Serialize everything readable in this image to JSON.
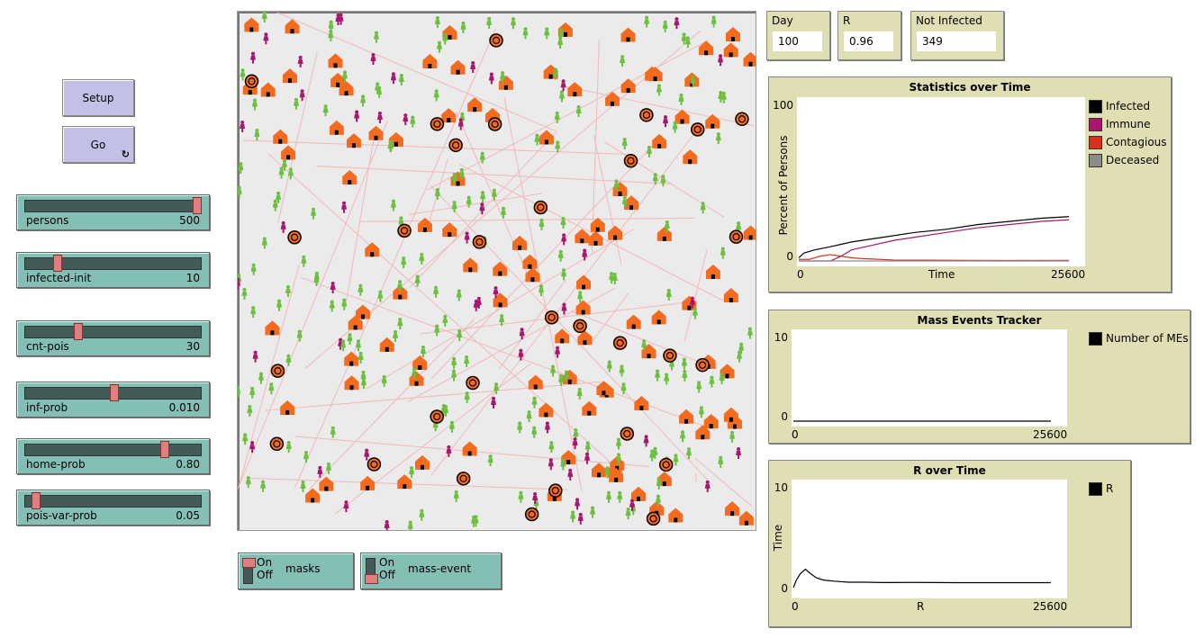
{
  "buttons": {
    "setup": "Setup",
    "go": "Go",
    "go_icon": "forever-icon"
  },
  "sliders": [
    {
      "label": "persons",
      "value": "500",
      "fraction": 0.99
    },
    {
      "label": "infected-init",
      "value": "10",
      "fraction": 0.17
    },
    {
      "label": "cnt-pois",
      "value": "30",
      "fraction": 0.29
    },
    {
      "label": "inf-prob",
      "value": "0.010",
      "fraction": 0.5
    },
    {
      "label": "home-prob",
      "value": "0.80",
      "fraction": 0.8
    },
    {
      "label": "pois-var-prob",
      "value": "0.05",
      "fraction": 0.04
    }
  ],
  "switches": [
    {
      "label": "masks",
      "on_text": "On",
      "off_text": "Off",
      "state": "on"
    },
    {
      "label": "mass-event",
      "on_text": "On",
      "off_text": "Off",
      "state": "off"
    }
  ],
  "monitors": [
    {
      "label": "Day",
      "value": "100"
    },
    {
      "label": "R",
      "value": "0.96"
    },
    {
      "label": "Not Infected",
      "value": "349"
    }
  ],
  "colors": {
    "house": "#f26b1f",
    "healthy": "#6cbf3f",
    "immune": "#a8166f",
    "contact_line": "#f2b8b8",
    "world_bg": "#ebebeb"
  },
  "chart_data": [
    {
      "type": "line",
      "title": "Statistics over Time",
      "xlabel": "Time",
      "ylabel": "Percent of Persons",
      "xlim": [
        0,
        25600
      ],
      "ylim": [
        0,
        100
      ],
      "xticks": [
        "0",
        "25600"
      ],
      "yticks": [
        "0",
        "100"
      ],
      "legend_position": "right",
      "series": [
        {
          "name": "Infected",
          "color": "#000000",
          "x": [
            0,
            500,
            1500,
            3000,
            5000,
            8000,
            11000,
            14000,
            17000,
            20000,
            23000,
            25600
          ],
          "y": [
            2,
            5,
            7,
            9,
            12,
            15,
            18,
            20,
            23,
            25,
            27,
            28
          ]
        },
        {
          "name": "Immune",
          "color": "#a8166f",
          "x": [
            0,
            3000,
            4000,
            5000,
            7000,
            9000,
            11000,
            14000,
            17000,
            20000,
            23000,
            25600
          ],
          "y": [
            0,
            0,
            3,
            7,
            10,
            13,
            15,
            18,
            21,
            23,
            25,
            26
          ]
        },
        {
          "name": "Contagious",
          "color": "#d7301f",
          "x": [
            0,
            1000,
            2000,
            3000,
            4000,
            5000,
            6000,
            7000,
            9000,
            12000,
            16000,
            20000,
            25600
          ],
          "y": [
            1,
            1,
            3,
            4,
            3,
            2,
            1.5,
            1.2,
            0.6,
            0.5,
            0.4,
            0.3,
            0.4
          ]
        },
        {
          "name": "Deceased",
          "color": "#8c8c8c",
          "x": [
            0,
            25600
          ],
          "y": [
            0,
            0
          ]
        }
      ]
    },
    {
      "type": "line",
      "title": "Mass Events Tracker",
      "xlabel": "",
      "ylabel": "",
      "xlim": [
        0,
        25600
      ],
      "ylim": [
        0,
        10
      ],
      "xticks": [
        "0",
        "25600"
      ],
      "yticks": [
        "0",
        "10"
      ],
      "legend_position": "right",
      "series": [
        {
          "name": "Number of MEs",
          "color": "#000000",
          "x": [
            0,
            25600
          ],
          "y": [
            0,
            0
          ]
        }
      ]
    },
    {
      "type": "line",
      "title": "R over Time",
      "xlabel": "R",
      "ylabel": "Time",
      "xlim": [
        0,
        25600
      ],
      "ylim": [
        0,
        10
      ],
      "xticks": [
        "0",
        "25600"
      ],
      "yticks": [
        "0",
        "10"
      ],
      "legend_position": "right",
      "series": [
        {
          "name": "R",
          "color": "#000000",
          "x": [
            0,
            300,
            700,
            1200,
            1700,
            2300,
            3000,
            4000,
            5500,
            7000,
            9000,
            12000,
            16000,
            20000,
            25600
          ],
          "y": [
            0.5,
            1.2,
            1.8,
            2.2,
            1.8,
            1.4,
            1.2,
            1.1,
            1.0,
            1.0,
            0.97,
            0.98,
            0.96,
            0.96,
            0.96
          ]
        }
      ]
    }
  ]
}
